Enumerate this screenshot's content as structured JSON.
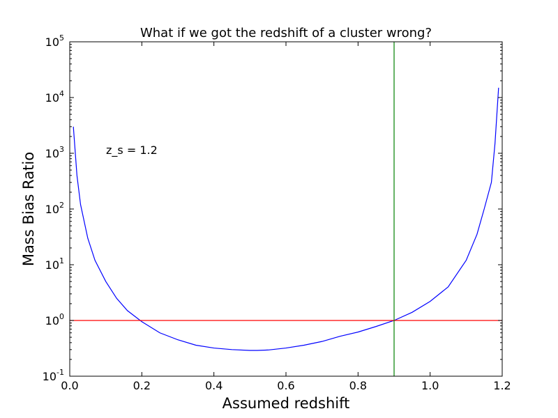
{
  "chart_data": {
    "type": "line",
    "title": "What if we got the redshift of a cluster wrong?",
    "xlabel": "Assumed redshift",
    "ylabel": "Mass Bias Ratio",
    "xlim": [
      0.0,
      1.2
    ],
    "ylim": [
      0.1,
      100000
    ],
    "yscale": "log",
    "grid": false,
    "x_ticks": [
      0.0,
      0.2,
      0.4,
      0.6,
      0.8,
      1.0,
      1.2
    ],
    "x_tick_labels": [
      "0.0",
      "0.2",
      "0.4",
      "0.6",
      "0.8",
      "1.0",
      "1.2"
    ],
    "y_ticks": [
      {
        "value": 0.1,
        "base": "10",
        "exp": "-1"
      },
      {
        "value": 1,
        "base": "10",
        "exp": "0"
      },
      {
        "value": 10,
        "base": "10",
        "exp": "1"
      },
      {
        "value": 100,
        "base": "10",
        "exp": "2"
      },
      {
        "value": 1000,
        "base": "10",
        "exp": "3"
      },
      {
        "value": 10000,
        "base": "10",
        "exp": "4"
      },
      {
        "value": 100000,
        "base": "10",
        "exp": "5"
      }
    ],
    "annotation": {
      "text": "z_s = 1.2",
      "x": 0.1,
      "y": 1000
    },
    "series": [
      {
        "color": "#0000ff",
        "x": [
          0.01,
          0.02,
          0.03,
          0.05,
          0.07,
          0.1,
          0.13,
          0.16,
          0.2,
          0.25,
          0.3,
          0.35,
          0.4,
          0.45,
          0.5,
          0.52,
          0.55,
          0.6,
          0.65,
          0.7,
          0.75,
          0.8,
          0.85,
          0.9,
          0.95,
          1.0,
          1.05,
          1.1,
          1.13,
          1.15,
          1.17,
          1.18,
          1.19
        ],
        "y": [
          3000,
          400,
          120,
          30,
          12,
          5,
          2.5,
          1.5,
          0.95,
          0.6,
          0.45,
          0.36,
          0.32,
          0.3,
          0.29,
          0.29,
          0.295,
          0.32,
          0.36,
          0.42,
          0.52,
          0.62,
          0.78,
          1.0,
          1.4,
          2.2,
          4,
          12,
          35,
          100,
          300,
          1500,
          15000
        ]
      }
    ],
    "hlines": [
      {
        "y": 1,
        "color": "#ff0000"
      }
    ],
    "vlines": [
      {
        "x": 0.9,
        "color": "#008000"
      }
    ]
  }
}
